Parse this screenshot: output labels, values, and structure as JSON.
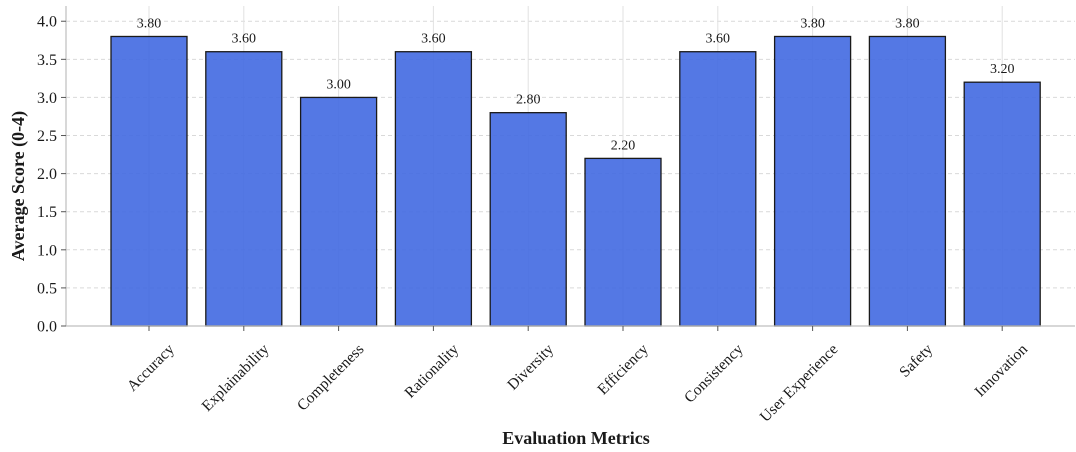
{
  "chart_data": {
    "type": "bar",
    "title": "",
    "xlabel": "Evaluation Metrics",
    "ylabel": "Average Score (0-4)",
    "categories": [
      "Accuracy",
      "Explainability",
      "Completeness",
      "Rationality",
      "Diversity",
      "Efficiency",
      "Consistency",
      "User Experience",
      "Safety",
      "Innovation"
    ],
    "values": [
      3.8,
      3.6,
      3.0,
      3.6,
      2.8,
      2.2,
      3.6,
      3.8,
      3.8,
      3.2
    ],
    "value_labels": [
      "3.80",
      "3.60",
      "3.00",
      "3.60",
      "2.80",
      "2.20",
      "3.60",
      "3.80",
      "3.80",
      "3.20"
    ],
    "yticks": [
      "0.0",
      "0.5",
      "1.0",
      "1.5",
      "2.0",
      "2.5",
      "3.0",
      "3.5",
      "4.0"
    ],
    "ylim": [
      0,
      4.2
    ],
    "grid": true,
    "bar_color": "#4169E1",
    "edge_color": "#1a1a1a"
  }
}
